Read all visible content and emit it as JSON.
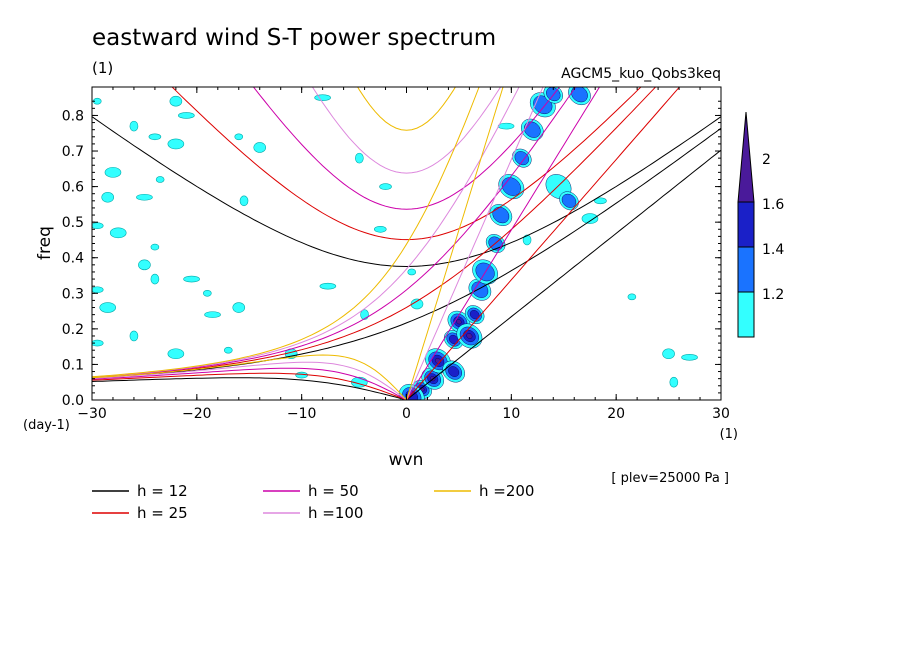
{
  "chart_data": {
    "type": "heatmap",
    "title": "eastward wind S-T power spectrum",
    "title_units": "(1)",
    "subtitle": "AGCM5_kuo_Qobs3keq",
    "xlabel": "wvn",
    "ylabel": "freq",
    "x_units": "(1)",
    "y_units": "(day-1)",
    "annotation": "[ plev=25000 Pa ]",
    "xlim": [
      -30,
      30
    ],
    "ylim": [
      0,
      0.88
    ],
    "x_ticks": [
      "−30",
      "−20",
      "−10",
      "0",
      "10",
      "20",
      "30"
    ],
    "x_tick_values": [
      -30,
      -20,
      -10,
      0,
      10,
      20,
      30
    ],
    "y_ticks": [
      "0.0",
      "0.1",
      "0.2",
      "0.3",
      "0.4",
      "0.5",
      "0.6",
      "0.7",
      "0.8"
    ],
    "y_tick_values": [
      0,
      0.1,
      0.2,
      0.3,
      0.4,
      0.5,
      0.6,
      0.7,
      0.8
    ],
    "colorbar": {
      "levels": [
        "1.2",
        "1.4",
        "1.6",
        "2"
      ],
      "level_values": [
        1.2,
        1.4,
        1.6,
        2.0
      ],
      "colors": [
        "#33ffff",
        "#1a73ff",
        "#1a20c8",
        "#4a1a9a"
      ]
    },
    "dispersion_curves": [
      {
        "name": "h = 12",
        "h": 12,
        "color": "#000000"
      },
      {
        "name": "h = 25",
        "h": 25,
        "color": "#dd0000"
      },
      {
        "name": "h = 50",
        "h": 50,
        "color": "#cc00aa"
      },
      {
        "name": "h =100",
        "h": 100,
        "color": "#dd88dd"
      },
      {
        "name": "h =200",
        "h": 200,
        "color": "#eebb00"
      }
    ],
    "power_blobs": [
      {
        "x": 1.5,
        "y": 0.03,
        "level": 4
      },
      {
        "x": 2.5,
        "y": 0.06,
        "level": 4
      },
      {
        "x": 3.0,
        "y": 0.11,
        "level": 4
      },
      {
        "x": 4.5,
        "y": 0.17,
        "level": 3
      },
      {
        "x": 5.0,
        "y": 0.22,
        "level": 4
      },
      {
        "x": 6.0,
        "y": 0.18,
        "level": 4
      },
      {
        "x": 6.5,
        "y": 0.24,
        "level": 3
      },
      {
        "x": 7.0,
        "y": 0.31,
        "level": 2
      },
      {
        "x": 7.5,
        "y": 0.36,
        "level": 2
      },
      {
        "x": 8.5,
        "y": 0.44,
        "level": 2
      },
      {
        "x": 9.0,
        "y": 0.52,
        "level": 2
      },
      {
        "x": 10.0,
        "y": 0.6,
        "level": 2
      },
      {
        "x": 11.0,
        "y": 0.68,
        "level": 2
      },
      {
        "x": 12.0,
        "y": 0.76,
        "level": 2
      },
      {
        "x": 13.0,
        "y": 0.83,
        "level": 2
      },
      {
        "x": 14.0,
        "y": 0.86,
        "level": 2
      },
      {
        "x": 16.5,
        "y": 0.86,
        "level": 2
      },
      {
        "x": 14.5,
        "y": 0.6,
        "level": 1
      },
      {
        "x": 15.5,
        "y": 0.56,
        "level": 2
      },
      {
        "x": 4.5,
        "y": 0.08,
        "level": 3
      },
      {
        "x": 0.5,
        "y": 0.01,
        "level": 3
      }
    ],
    "weak_blobs": [
      {
        "x": -29.5,
        "y": 0.84
      },
      {
        "x": -22,
        "y": 0.84
      },
      {
        "x": -21,
        "y": 0.8
      },
      {
        "x": -26,
        "y": 0.77
      },
      {
        "x": -24,
        "y": 0.74
      },
      {
        "x": -22,
        "y": 0.72
      },
      {
        "x": -16,
        "y": 0.74
      },
      {
        "x": -14,
        "y": 0.71
      },
      {
        "x": -8,
        "y": 0.85
      },
      {
        "x": -4.5,
        "y": 0.68
      },
      {
        "x": -2,
        "y": 0.6
      },
      {
        "x": -28,
        "y": 0.64
      },
      {
        "x": -23.5,
        "y": 0.62
      },
      {
        "x": -28.5,
        "y": 0.57
      },
      {
        "x": -25,
        "y": 0.57
      },
      {
        "x": -15.5,
        "y": 0.56
      },
      {
        "x": -29.5,
        "y": 0.49
      },
      {
        "x": -27.5,
        "y": 0.47
      },
      {
        "x": -24,
        "y": 0.43
      },
      {
        "x": -25,
        "y": 0.38
      },
      {
        "x": -20.5,
        "y": 0.34
      },
      {
        "x": -24,
        "y": 0.34
      },
      {
        "x": -29.5,
        "y": 0.31
      },
      {
        "x": -28.5,
        "y": 0.26
      },
      {
        "x": -19,
        "y": 0.3
      },
      {
        "x": -16,
        "y": 0.26
      },
      {
        "x": -18.5,
        "y": 0.24
      },
      {
        "x": -26,
        "y": 0.18
      },
      {
        "x": -29.5,
        "y": 0.16
      },
      {
        "x": -22,
        "y": 0.13
      },
      {
        "x": -17,
        "y": 0.14
      },
      {
        "x": -11,
        "y": 0.13
      },
      {
        "x": -7.5,
        "y": 0.32
      },
      {
        "x": -4,
        "y": 0.24
      },
      {
        "x": -10,
        "y": 0.07
      },
      {
        "x": -4.5,
        "y": 0.05
      },
      {
        "x": 0.5,
        "y": 0.36
      },
      {
        "x": 1,
        "y": 0.27
      },
      {
        "x": 9.5,
        "y": 0.77
      },
      {
        "x": 11.5,
        "y": 0.45
      },
      {
        "x": 18.5,
        "y": 0.56
      },
      {
        "x": 17.5,
        "y": 0.51
      },
      {
        "x": 21.5,
        "y": 0.29
      },
      {
        "x": 25,
        "y": 0.13
      },
      {
        "x": 27,
        "y": 0.12
      },
      {
        "x": 25.5,
        "y": 0.05
      },
      {
        "x": -2.5,
        "y": 0.48
      }
    ]
  }
}
